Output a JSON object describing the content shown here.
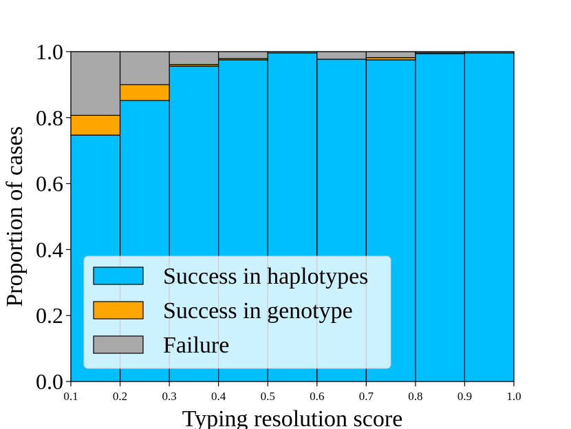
{
  "chart_data": {
    "type": "bar",
    "stacked": true,
    "title": "",
    "xlabel": "Typing resolution score",
    "ylabel": "Proportion of cases",
    "xlim": [
      0.1,
      1.0
    ],
    "ylim": [
      0.0,
      1.0
    ],
    "x_ticks": [
      "0.1",
      "0.2",
      "0.3",
      "0.4",
      "0.5",
      "0.6",
      "0.7",
      "0.8",
      "0.9",
      "1.0"
    ],
    "y_ticks": [
      "0.0",
      "0.2",
      "0.4",
      "0.6",
      "0.8",
      "1.0"
    ],
    "bin_edges": [
      0.1,
      0.2,
      0.3,
      0.4,
      0.5,
      0.6,
      0.7,
      0.8,
      0.9,
      1.0
    ],
    "series": [
      {
        "name": "Success in haplotypes",
        "color": "#00BFFF",
        "values": [
          0.747,
          0.852,
          0.956,
          0.975,
          0.996,
          0.977,
          0.975,
          0.994,
          0.996
        ]
      },
      {
        "name": "Success in genotype",
        "color": "#FFA500",
        "values": [
          0.06,
          0.048,
          0.005,
          0.004,
          0.0,
          0.0,
          0.007,
          0.002,
          0.0
        ]
      },
      {
        "name": "Failure",
        "color": "#A9A9A9",
        "values": [
          0.193,
          0.1,
          0.039,
          0.021,
          0.004,
          0.023,
          0.018,
          0.004,
          0.004
        ]
      }
    ],
    "legend_position": "lower-left",
    "grid": false
  }
}
